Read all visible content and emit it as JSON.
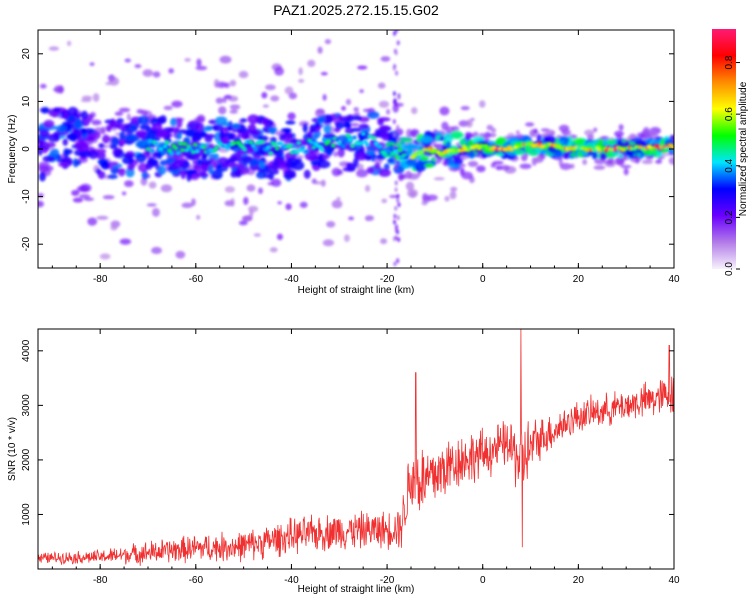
{
  "title": "PAZ1.2025.272.15.15.G02",
  "chart_data": [
    {
      "type": "heatmap",
      "xlabel": "Height of straight line (km)",
      "ylabel": "Frequency (Hz)",
      "xlim": [
        -93,
        40
      ],
      "ylim": [
        -25,
        25
      ],
      "xticks": [
        -80,
        -60,
        -40,
        -20,
        0,
        20,
        40
      ],
      "yticks": [
        20,
        10,
        0,
        -10,
        -20
      ],
      "colorbar": {
        "label": "Normalized spectral amplitude",
        "range": [
          0.0,
          0.93
        ],
        "ticks": [
          0.0,
          0.2,
          0.4,
          0.6,
          0.8
        ],
        "colors": [
          "#f7f2fc",
          "#b27be8",
          "#6a00ff",
          "#0000ff",
          "#00e5ff",
          "#00ff00",
          "#ffff00",
          "#ff8c00",
          "#ff0000",
          "#ff1a75"
        ]
      },
      "ridge": [
        {
          "x": -92,
          "y": 3
        },
        {
          "x": -85,
          "y": 2
        },
        {
          "x": -78,
          "y": 0
        },
        {
          "x": -70,
          "y": 0.5
        },
        {
          "x": -60,
          "y": 0
        },
        {
          "x": -50,
          "y": 0.5
        },
        {
          "x": -40,
          "y": 0
        },
        {
          "x": -30,
          "y": 1.5
        },
        {
          "x": -25,
          "y": 2
        },
        {
          "x": -20,
          "y": 0
        },
        {
          "x": -17,
          "y": -1
        },
        {
          "x": -14,
          "y": -1.5
        },
        {
          "x": -12,
          "y": 0
        },
        {
          "x": -8,
          "y": -1
        },
        {
          "x": -5,
          "y": 0
        },
        {
          "x": 0,
          "y": 0.5
        },
        {
          "x": 5,
          "y": 0
        },
        {
          "x": 10,
          "y": 1
        },
        {
          "x": 15,
          "y": 0.5
        },
        {
          "x": 20,
          "y": 0
        },
        {
          "x": 30,
          "y": 0
        },
        {
          "x": 40,
          "y": 0.5
        }
      ]
    },
    {
      "type": "line",
      "xlabel": "Height of straight line (km)",
      "ylabel": "SNR (10 * v/v)",
      "xlim": [
        -93,
        40
      ],
      "ylim": [
        0,
        4400
      ],
      "xticks": [
        -80,
        -60,
        -40,
        -20,
        0,
        20,
        40
      ],
      "yticks": [
        1000,
        2000,
        3000,
        4000
      ],
      "color": "#f03030",
      "envelope": [
        {
          "x": -93,
          "mean": 200,
          "noise": 120
        },
        {
          "x": -80,
          "mean": 220,
          "noise": 150
        },
        {
          "x": -70,
          "mean": 300,
          "noise": 250
        },
        {
          "x": -60,
          "mean": 380,
          "noise": 300
        },
        {
          "x": -50,
          "mean": 420,
          "noise": 330
        },
        {
          "x": -40,
          "mean": 600,
          "noise": 380
        },
        {
          "x": -30,
          "mean": 700,
          "noise": 400
        },
        {
          "x": -20,
          "mean": 720,
          "noise": 400
        },
        {
          "x": -17,
          "mean": 800,
          "noise": 500
        },
        {
          "x": -15,
          "mean": 1700,
          "noise": 900
        },
        {
          "x": -12,
          "mean": 1600,
          "noise": 800
        },
        {
          "x": -5,
          "mean": 2000,
          "noise": 600
        },
        {
          "x": 0,
          "mean": 2100,
          "noise": 550
        },
        {
          "x": 5,
          "mean": 2300,
          "noise": 500
        },
        {
          "x": 8,
          "mean": 2000,
          "noise": 900
        },
        {
          "x": 12,
          "mean": 2400,
          "noise": 450
        },
        {
          "x": 20,
          "mean": 2800,
          "noise": 350
        },
        {
          "x": 30,
          "mean": 3000,
          "noise": 350
        },
        {
          "x": 40,
          "mean": 3200,
          "noise": 450
        }
      ],
      "peaks": [
        {
          "x": 8,
          "y": 4400
        },
        {
          "x": -14,
          "y": 3600
        },
        {
          "x": 39,
          "y": 4100
        },
        {
          "x": 8.3,
          "y": 400
        }
      ]
    }
  ]
}
